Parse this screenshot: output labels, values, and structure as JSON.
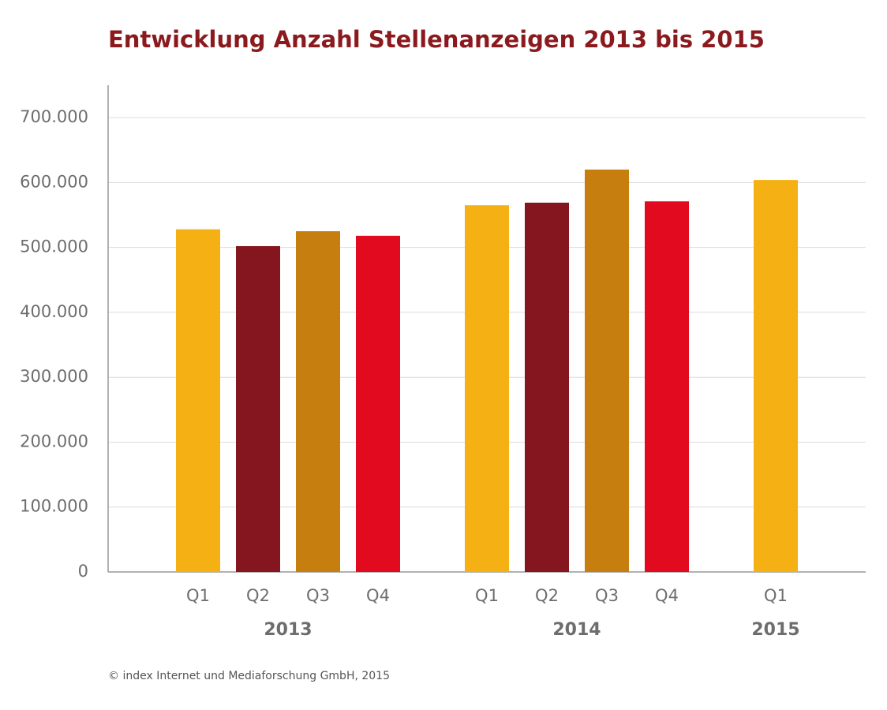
{
  "chart_data": {
    "type": "bar",
    "title": "Entwicklung Anzahl Stellenanzeigen 2013 bis 2015",
    "groups": [
      {
        "name": "2013",
        "categories": [
          "Q1",
          "Q2",
          "Q3",
          "Q4"
        ],
        "values": [
          528000,
          502000,
          525000,
          518000
        ],
        "colors": [
          "#f5b114",
          "#85151e",
          "#c67f0f",
          "#e10a1e"
        ]
      },
      {
        "name": "2014",
        "categories": [
          "Q1",
          "Q2",
          "Q3",
          "Q4"
        ],
        "values": [
          565000,
          569000,
          620000,
          571000
        ],
        "colors": [
          "#f5b114",
          "#85151e",
          "#c67f0f",
          "#e10a1e"
        ]
      },
      {
        "name": "2015",
        "categories": [
          "Q1"
        ],
        "values": [
          604000
        ],
        "colors": [
          "#f5b114"
        ]
      }
    ],
    "ylim": [
      0,
      750000
    ],
    "yticks": [
      0,
      {
        "value": 100000,
        "label": "100.000"
      },
      {
        "value": 200000,
        "label": "200.000"
      },
      {
        "value": 300000,
        "label": "300.000"
      },
      {
        "value": 400000,
        "label": "400.000"
      },
      {
        "value": 500000,
        "label": "500.000"
      },
      {
        "value": 600000,
        "label": "600.000"
      },
      {
        "value": 700000,
        "label": "700.000"
      }
    ],
    "grid": true,
    "source": "© index Internet und Mediaforschung GmbH, 2015"
  }
}
